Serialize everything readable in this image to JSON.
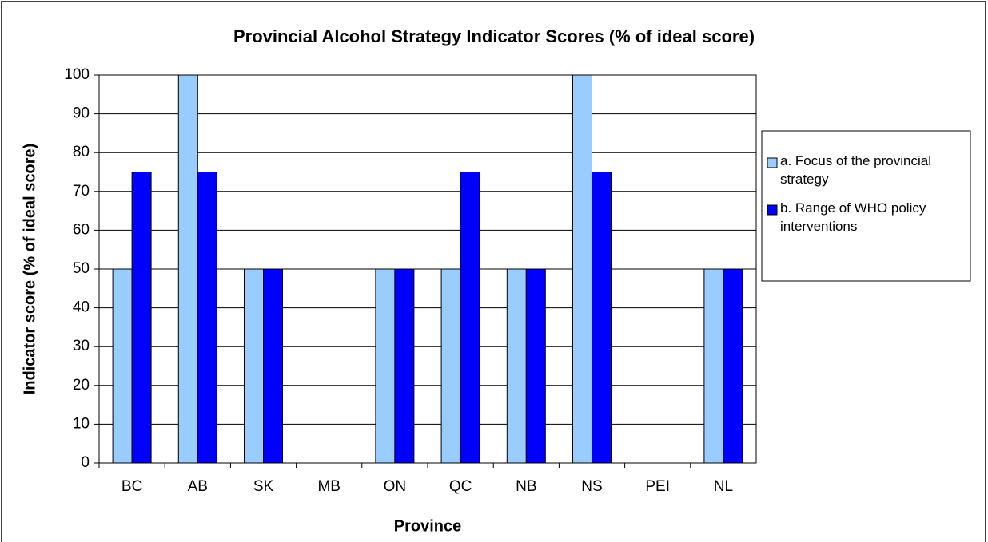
{
  "chart_data": {
    "type": "bar",
    "title": "Provincial Alcohol Strategy Indicator Scores (% of ideal score)",
    "x_label": "Province",
    "y_label": "Indicator score (% of ideal score)",
    "categories": [
      "BC",
      "AB",
      "SK",
      "MB",
      "ON",
      "QC",
      "NB",
      "NS",
      "PEI",
      "NL"
    ],
    "series": [
      {
        "name": "a. Focus of the provincial strategy",
        "color": "#99ccff",
        "values": [
          50,
          100,
          50,
          0,
          50,
          50,
          50,
          100,
          0,
          50
        ]
      },
      {
        "name": "b. Range of WHO policy interventions",
        "color": "#0000ff",
        "values": [
          75,
          75,
          50,
          0,
          50,
          75,
          50,
          75,
          0,
          50
        ]
      }
    ],
    "ylim": [
      0,
      100
    ],
    "yticks": [
      0,
      10,
      20,
      30,
      40,
      50,
      60,
      70,
      80,
      90,
      100
    ],
    "grid": true,
    "legend": "right"
  }
}
